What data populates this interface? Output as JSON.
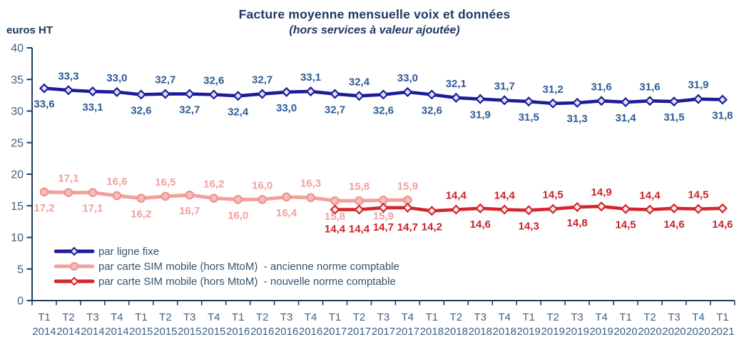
{
  "chart_data": {
    "type": "line",
    "title": "Facture moyenne mensuelle voix et données",
    "subtitle": "(hors services à valeur ajoutée)",
    "ylabel": "euros HT",
    "ylim": [
      0,
      40
    ],
    "ytick_step": 5,
    "grid": false,
    "legend_position": "inside-bottom-left",
    "axis_color": "#1E3A5F",
    "tick_label_color": "#3D6186",
    "categories": [
      {
        "q": "T1",
        "year": "2014"
      },
      {
        "q": "T2",
        "year": "2014"
      },
      {
        "q": "T3",
        "year": "2014"
      },
      {
        "q": "T4",
        "year": "2014"
      },
      {
        "q": "T1",
        "year": "2015"
      },
      {
        "q": "T2",
        "year": "2015"
      },
      {
        "q": "T3",
        "year": "2015"
      },
      {
        "q": "T4",
        "year": "2015"
      },
      {
        "q": "T1",
        "year": "2016"
      },
      {
        "q": "T2",
        "year": "2016"
      },
      {
        "q": "T3",
        "year": "2016"
      },
      {
        "q": "T4",
        "year": "2016"
      },
      {
        "q": "T1",
        "year": "2017"
      },
      {
        "q": "T2",
        "year": "2017"
      },
      {
        "q": "T3",
        "year": "2017"
      },
      {
        "q": "T4",
        "year": "2017"
      },
      {
        "q": "T1",
        "year": "2018"
      },
      {
        "q": "T2",
        "year": "2018"
      },
      {
        "q": "T3",
        "year": "2018"
      },
      {
        "q": "T4",
        "year": "2018"
      },
      {
        "q": "T1",
        "year": "2019"
      },
      {
        "q": "T2",
        "year": "2019"
      },
      {
        "q": "T3",
        "year": "2019"
      },
      {
        "q": "T4",
        "year": "2019"
      },
      {
        "q": "T1",
        "year": "2020"
      },
      {
        "q": "T2",
        "year": "2020"
      },
      {
        "q": "T3",
        "year": "2020"
      },
      {
        "q": "T4",
        "year": "2020"
      },
      {
        "q": "T1",
        "year": "2021"
      }
    ],
    "series": [
      {
        "name": "par ligne fixe",
        "color": "#1F1A99",
        "marker": "diamond",
        "marker_fill": "#D6E6F8",
        "marker_stroke": "#1F1A99",
        "label_color": "#2E5B94",
        "start_index": 0,
        "values": [
          "33,6",
          "33,3",
          "33,1",
          "33,0",
          "32,6",
          "32,7",
          "32,7",
          "32,6",
          "32,4",
          "32,7",
          "33,0",
          "33,1",
          "32,7",
          "32,4",
          "32,6",
          "33,0",
          "32,6",
          "32,1",
          "31,9",
          "31,7",
          "31,5",
          "31,2",
          "31,3",
          "31,6",
          "31,4",
          "31,6",
          "31,5",
          "31,9",
          "31,8"
        ],
        "label_pos": [
          "b",
          "a",
          "b",
          "a",
          "b",
          "a",
          "b",
          "a",
          "b",
          "a",
          "b",
          "a",
          "b",
          "a",
          "b",
          "a",
          "b",
          "a",
          "b",
          "a",
          "b",
          "a",
          "b",
          "a",
          "b",
          "a",
          "b",
          "a",
          "b"
        ]
      },
      {
        "name": "par carte SIM mobile (hors MtoM)  - ancienne norme comptable",
        "color": "#F2A19E",
        "marker": "circle",
        "marker_fill": "#F7BCB9",
        "marker_stroke": "#EE938F",
        "label_color": "#F2A19E",
        "start_index": 0,
        "values": [
          "17,2",
          "17,1",
          "17,1",
          "16,6",
          "16,2",
          "16,5",
          "16,7",
          "16,2",
          "16,0",
          "16,0",
          "16,4",
          "16,3",
          "15,8",
          "15,8",
          "15,9",
          "15,9"
        ],
        "label_pos": [
          "b",
          "a",
          "b",
          "a",
          "b",
          "a",
          "b",
          "a",
          "b",
          "a",
          "b",
          "a",
          "b",
          "a",
          "b",
          "a"
        ]
      },
      {
        "name": "par carte SIM mobile (hors MtoM)  - nouvelle norme comptable",
        "color": "#D3262C",
        "marker": "diamond",
        "marker_fill": "#FCEBEA",
        "marker_stroke": "#D3262C",
        "label_color": "#C8232A",
        "start_index": 12,
        "values": [
          "14,4",
          "14,4",
          "14,7",
          "14,7",
          "14,2",
          "14,4",
          "14,6",
          "14,4",
          "14,3",
          "14,5",
          "14,8",
          "14,9",
          "14,5",
          "14,4",
          "14,6",
          "14,5",
          "14,6"
        ],
        "label_pos": [
          "B",
          "B",
          "B",
          "B",
          "b",
          "a",
          "b",
          "a",
          "b",
          "a",
          "b",
          "a",
          "b",
          "a",
          "b",
          "a",
          "b"
        ]
      }
    ]
  }
}
